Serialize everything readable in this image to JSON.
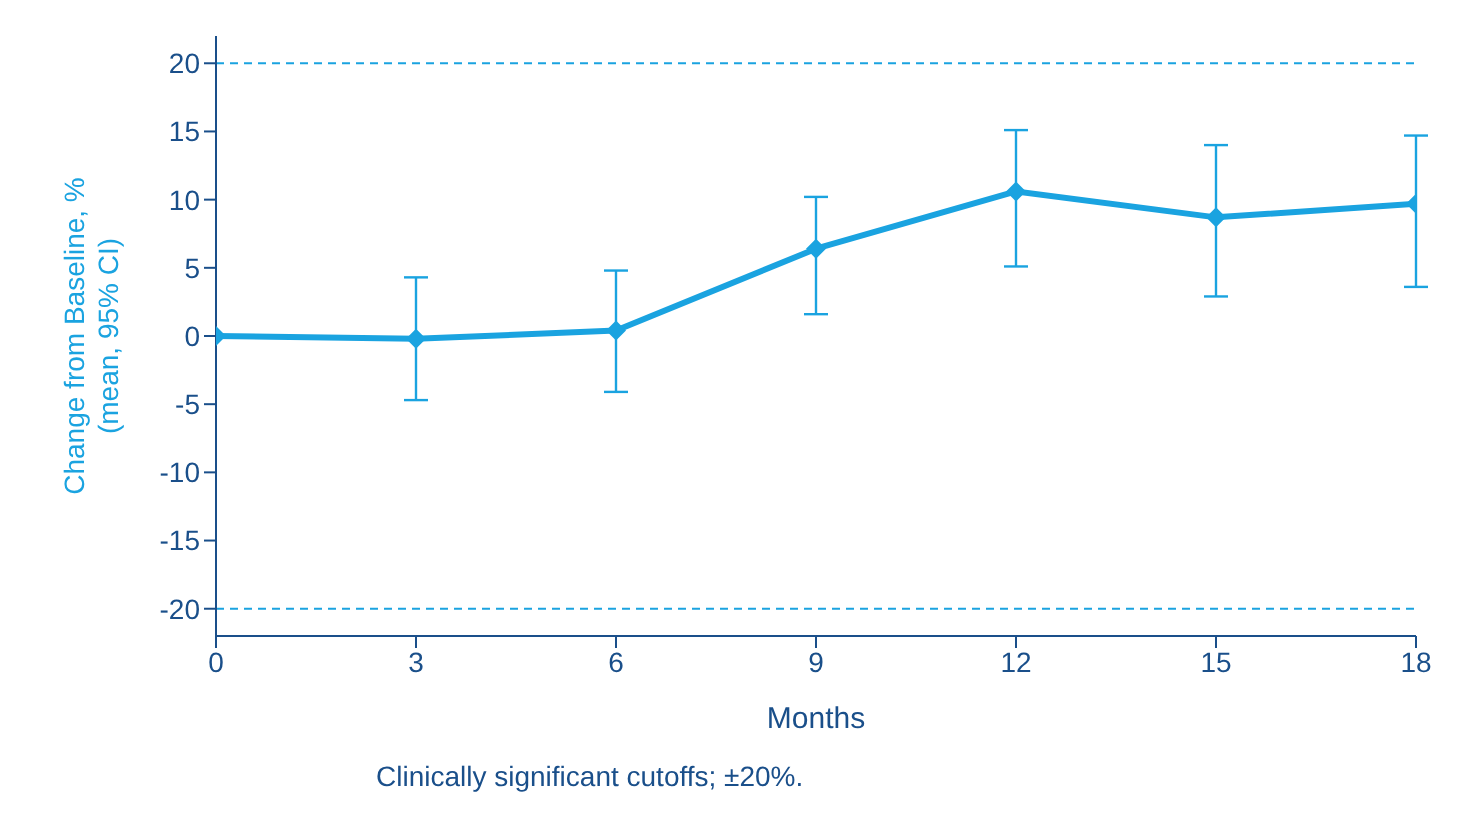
{
  "chart_data": {
    "type": "line",
    "xlabel": "Months",
    "ylabel": "Change from Baseline, %\n(mean, 95% CI)",
    "x": [
      0,
      3,
      6,
      9,
      12,
      15,
      18
    ],
    "series": [
      {
        "color": "#1aa3e0",
        "values": [
          0,
          -0.2,
          0.4,
          6.4,
          10.6,
          8.7,
          9.7
        ],
        "errors": [
          null,
          [
            -4.7,
            4.3
          ],
          [
            -4.1,
            4.8
          ],
          [
            1.6,
            10.2
          ],
          [
            5.1,
            15.1
          ],
          [
            2.9,
            14.0
          ],
          [
            3.6,
            14.7
          ]
        ]
      }
    ],
    "xlim": [
      0,
      18
    ],
    "xticks": [
      0,
      3,
      6,
      9,
      12,
      15,
      18
    ],
    "ylim": [
      -22,
      22
    ],
    "yticks": [
      -20,
      -15,
      -10,
      -5,
      0,
      5,
      10,
      15,
      20
    ],
    "ref_lines": [
      {
        "axis": "y",
        "value": 20,
        "color": "#1aa3e0",
        "line_style": "dashed"
      },
      {
        "axis": "y",
        "value": -20,
        "color": "#1aa3e0",
        "line_style": "dashed"
      }
    ],
    "annotations": [
      "Clinically significant cutoffs; ±20%."
    ],
    "marker": "diamond",
    "line_style": "solid",
    "grid": false,
    "legend": false
  }
}
